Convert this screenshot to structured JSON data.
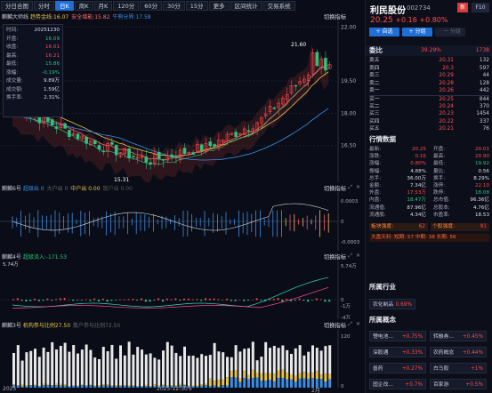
{
  "toolbar": {
    "buttons": [
      "分日合图",
      "分时",
      "日K",
      "周K",
      "月K",
      "120分",
      "60分",
      "30分",
      "15分",
      "更多",
      "区间统计",
      "交易系统"
    ],
    "active_index": 2
  },
  "main_panel": {
    "name": "麒麟大师线",
    "ind1": "趋势金线:16.07",
    "ind2": "安全增能:15.82",
    "ind3": "牛熊分界:17.58",
    "switch": "切换指标",
    "high_label": "21.60",
    "low_label": "15.31",
    "y_ticks": [
      "22.00",
      "19.50",
      "18.00",
      "16.50"
    ]
  },
  "infobox": {
    "rows": [
      {
        "k": "时间:",
        "v": "20251230",
        "c": "wht"
      },
      {
        "k": "开盘:",
        "v": "16.09",
        "c": "grn"
      },
      {
        "k": "收盘:",
        "v": "16.01",
        "c": "red"
      },
      {
        "k": "最高:",
        "v": "16.21",
        "c": "red"
      },
      {
        "k": "最低:",
        "v": "15.86",
        "c": "grn"
      },
      {
        "k": "涨幅:",
        "v": "-0.19%",
        "c": "grn"
      },
      {
        "k": "成交量:",
        "v": "9.89万",
        "c": "wht"
      },
      {
        "k": "成交额:",
        "v": "1.59亿",
        "c": "wht"
      },
      {
        "k": "换手率:",
        "v": "2.31%",
        "c": "wht"
      }
    ]
  },
  "panel2": {
    "name": "麒麟6号",
    "a": "超级出 0",
    "b": "大户出 0",
    "c": "中户出 0.00",
    "d": "散户出 0.00",
    "switch": "切换指标",
    "y_ticks": [
      "0.0003",
      "0",
      "-0.0003"
    ]
  },
  "panel3": {
    "name": "麒麟4号",
    "a": "超级流入:-171.53",
    "switch": "切换指标",
    "left_val": "5.74万",
    "y_ticks": [
      "5.74万",
      "0",
      "-1万",
      "-4万"
    ]
  },
  "panel4": {
    "name": "麒麟3号",
    "a": "机构参与比例27.50",
    "b": "散户参与比例72.50",
    "switch": "切换指标",
    "y_ticks": [
      "120",
      "0"
    ]
  },
  "x_axis": {
    "labels": [
      "2025",
      "2025-12-30",
      "6",
      "2月"
    ]
  },
  "stock": {
    "name": "利民股份",
    "code": "002734",
    "badge": "新",
    "f10": "F10",
    "price": "20.25",
    "change": "+0.16",
    "pct": "+0.80%",
    "btn_self": "+ 自选",
    "btn_group": "+ 分组",
    "btn_more": "· 一 分组"
  },
  "orderbook": {
    "title": "委比",
    "ratio": "39.29%",
    "diff": "1738",
    "rows": [
      {
        "l": "卖五",
        "p": "20.31",
        "v": "132"
      },
      {
        "l": "卖四",
        "p": "20.3",
        "v": "597"
      },
      {
        "l": "卖三",
        "p": "20.29",
        "v": "44"
      },
      {
        "l": "卖二",
        "p": "20.28",
        "v": "128"
      },
      {
        "l": "卖一",
        "p": "20.26",
        "v": "442"
      },
      {
        "l": "买一",
        "p": "20.25",
        "v": "844"
      },
      {
        "l": "买二",
        "p": "20.24",
        "v": "370"
      },
      {
        "l": "买三",
        "p": "20.23",
        "v": "1454"
      },
      {
        "l": "买四",
        "p": "20.22",
        "v": "337"
      },
      {
        "l": "买五",
        "p": "20.21",
        "v": "76"
      }
    ]
  },
  "quote": {
    "title": "行情数据",
    "rows": [
      [
        "最新:",
        "20.25",
        "red",
        "开盘:",
        "20.01",
        "red"
      ],
      [
        "涨跌:",
        "0.16",
        "red",
        "最高:",
        "20.90",
        "red"
      ],
      [
        "涨幅:",
        "0.80%",
        "red",
        "最低:",
        "19.92",
        "grn"
      ],
      [
        "振幅:",
        "4.88%",
        "wht",
        "量比:",
        "0.56",
        "wht"
      ],
      [
        "总手:",
        "36.00万",
        "wht",
        "换手:",
        "8.29%",
        "wht"
      ],
      [
        "金额:",
        "7.34亿",
        "wht",
        "涨停:",
        "22.10",
        "red"
      ],
      [
        "外盘:",
        "17.53万",
        "red",
        "跌停:",
        "18.08",
        "grn"
      ],
      [
        "内盘:",
        "18.47万",
        "grn",
        "总市值:",
        "96.36亿",
        "wht"
      ],
      [
        "流通值:",
        "87.96亿",
        "wht",
        "总股本:",
        "4.76亿",
        "wht"
      ],
      [
        "流通股:",
        "4.34亿",
        "wht",
        "市盈率:",
        "18.53",
        "wht"
      ]
    ]
  },
  "strength": {
    "sector_label": "板块强度:",
    "sector_val": "62",
    "stock_label": "个股强度:",
    "stock_val": "91",
    "trend": "大盘天利: 短期: 57 中期: 38 长期: 56"
  },
  "industry": {
    "title": "所属行业",
    "tag": "农化制品",
    "pct": "0.69%"
  },
  "concepts": {
    "title": "所属概念",
    "items": [
      {
        "n": "锂电池...",
        "p": "+0.75%"
      },
      {
        "n": "转融券...",
        "p": "+0.45%"
      },
      {
        "n": "深股通",
        "p": "+0.33%"
      },
      {
        "n": "农药概念",
        "p": "+0.44%"
      },
      {
        "n": "兽药",
        "p": "+0.27%"
      },
      {
        "n": "白马股",
        "p": "+1%"
      },
      {
        "n": "国企改...",
        "p": "+0.7%"
      },
      {
        "n": "百家游",
        "p": "+0.5%"
      }
    ]
  },
  "colors": {
    "up": "#ff4a4a",
    "down": "#2ec27e",
    "gold": "#e8c24a",
    "blue": "#3a8ee6"
  }
}
